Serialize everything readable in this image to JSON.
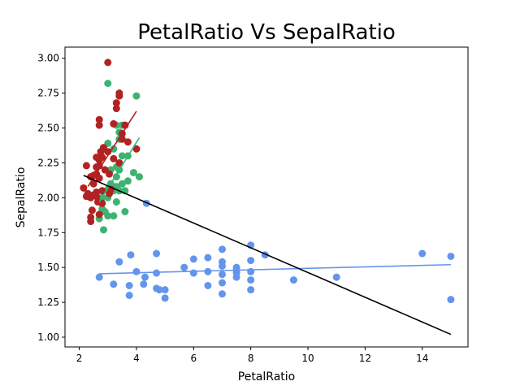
{
  "chart_data": {
    "type": "scatter",
    "title": "PetalRatio Vs SepalRatio",
    "xlabel": "PetalRatio",
    "ylabel": "SepalRatio",
    "xlim": [
      1.5,
      15.6
    ],
    "ylim": [
      0.93,
      3.08
    ],
    "xticks": [
      2,
      4,
      6,
      8,
      10,
      12,
      14
    ],
    "yticks": [
      1.0,
      1.25,
      1.5,
      1.75,
      2.0,
      2.25,
      2.5,
      2.75,
      3.0
    ],
    "grid": false,
    "legend": "none",
    "series": [
      {
        "color": "#6495ED",
        "points": [
          [
            2.7,
            1.43
          ],
          [
            3.2,
            1.38
          ],
          [
            3.4,
            1.54
          ],
          [
            3.8,
            1.59
          ],
          [
            3.75,
            1.3
          ],
          [
            3.75,
            1.37
          ],
          [
            4.0,
            1.47
          ],
          [
            4.25,
            1.38
          ],
          [
            4.3,
            1.43
          ],
          [
            4.7,
            1.6
          ],
          [
            4.7,
            1.46
          ],
          [
            4.7,
            1.35
          ],
          [
            4.8,
            1.34
          ],
          [
            5.0,
            1.34
          ],
          [
            5.0,
            1.28
          ],
          [
            5.67,
            1.5
          ],
          [
            6.0,
            1.56
          ],
          [
            6.0,
            1.46
          ],
          [
            6.5,
            1.57
          ],
          [
            6.5,
            1.47
          ],
          [
            6.5,
            1.37
          ],
          [
            7.0,
            1.63
          ],
          [
            7.0,
            1.54
          ],
          [
            7.0,
            1.51
          ],
          [
            7.0,
            1.45
          ],
          [
            7.0,
            1.39
          ],
          [
            7.0,
            1.31
          ],
          [
            7.5,
            1.5
          ],
          [
            7.5,
            1.48
          ],
          [
            7.5,
            1.46
          ],
          [
            7.5,
            1.43
          ],
          [
            8.0,
            1.66
          ],
          [
            8.0,
            1.55
          ],
          [
            8.0,
            1.47
          ],
          [
            8.0,
            1.41
          ],
          [
            8.0,
            1.34
          ],
          [
            8.5,
            1.59
          ],
          [
            9.5,
            1.41
          ],
          [
            11.0,
            1.43
          ],
          [
            14.0,
            1.6
          ],
          [
            15.0,
            1.58
          ],
          [
            15.0,
            1.27
          ],
          [
            4.35,
            1.96
          ]
        ],
        "fit": [
          [
            2.7,
            1.455
          ],
          [
            15.0,
            1.52
          ]
        ]
      },
      {
        "color": "#3CB371",
        "points": [
          [
            3.0,
            2.82
          ],
          [
            3.1,
            2.2
          ],
          [
            3.2,
            2.35
          ],
          [
            3.3,
            2.52
          ],
          [
            3.4,
            2.47
          ],
          [
            3.5,
            2.52
          ],
          [
            3.0,
            2.39
          ],
          [
            3.4,
            2.25
          ],
          [
            3.5,
            2.3
          ],
          [
            3.7,
            2.3
          ],
          [
            4.0,
            2.73
          ],
          [
            3.3,
            2.22
          ],
          [
            3.4,
            2.2
          ],
          [
            3.1,
            2.1
          ],
          [
            3.3,
            2.15
          ],
          [
            3.5,
            2.1
          ],
          [
            3.7,
            2.12
          ],
          [
            3.9,
            2.18
          ],
          [
            4.1,
            2.15
          ],
          [
            3.2,
            2.05
          ],
          [
            3.4,
            2.05
          ],
          [
            3.6,
            2.05
          ],
          [
            2.8,
            2.0
          ],
          [
            3.0,
            2.0
          ],
          [
            3.3,
            1.97
          ],
          [
            2.8,
            1.92
          ],
          [
            2.9,
            1.9
          ],
          [
            3.2,
            1.87
          ],
          [
            3.0,
            1.87
          ],
          [
            2.7,
            1.85
          ],
          [
            3.6,
            1.9
          ],
          [
            2.85,
            1.77
          ],
          [
            3.6,
            2.52
          ],
          [
            3.4,
            2.42
          ],
          [
            3.0,
            2.06
          ],
          [
            3.3,
            2.08
          ]
        ],
        "fit": [
          [
            2.7,
            1.97
          ],
          [
            4.1,
            2.43
          ]
        ]
      },
      {
        "color": "#B22222",
        "points": [
          [
            3.0,
            2.97
          ],
          [
            3.4,
            2.75
          ],
          [
            3.4,
            2.73
          ],
          [
            3.3,
            2.68
          ],
          [
            3.3,
            2.64
          ],
          [
            2.7,
            2.56
          ],
          [
            2.7,
            2.52
          ],
          [
            3.2,
            2.53
          ],
          [
            3.6,
            2.52
          ],
          [
            3.5,
            2.46
          ],
          [
            3.5,
            2.42
          ],
          [
            3.7,
            2.4
          ],
          [
            2.85,
            2.36
          ],
          [
            2.75,
            2.33
          ],
          [
            3.0,
            2.33
          ],
          [
            4.0,
            2.35
          ],
          [
            2.6,
            2.29
          ],
          [
            2.8,
            2.29
          ],
          [
            2.7,
            2.27
          ],
          [
            3.2,
            2.28
          ],
          [
            3.4,
            2.25
          ],
          [
            2.6,
            2.22
          ],
          [
            2.7,
            2.23
          ],
          [
            2.25,
            2.23
          ],
          [
            2.9,
            2.2
          ],
          [
            3.05,
            2.17
          ],
          [
            2.6,
            2.17
          ],
          [
            2.5,
            2.16
          ],
          [
            2.4,
            2.15
          ],
          [
            2.7,
            2.14
          ],
          [
            2.5,
            2.1
          ],
          [
            2.15,
            2.07
          ],
          [
            2.3,
            2.03
          ],
          [
            2.5,
            2.02
          ],
          [
            2.6,
            2.01
          ],
          [
            2.25,
            2.01
          ],
          [
            2.4,
            2.0
          ],
          [
            2.6,
            2.04
          ],
          [
            2.8,
            2.05
          ],
          [
            3.05,
            2.03
          ],
          [
            2.65,
            1.97
          ],
          [
            2.8,
            1.96
          ],
          [
            2.45,
            1.91
          ],
          [
            2.7,
            1.88
          ],
          [
            2.4,
            1.86
          ],
          [
            2.4,
            1.83
          ],
          [
            3.1,
            2.06
          ]
        ],
        "fit": [
          [
            2.3,
            2.08
          ],
          [
            4.0,
            2.62
          ]
        ]
      },
      {
        "color": "#000000",
        "fit": [
          [
            2.15,
            2.16
          ],
          [
            15.0,
            1.02
          ]
        ]
      }
    ]
  }
}
